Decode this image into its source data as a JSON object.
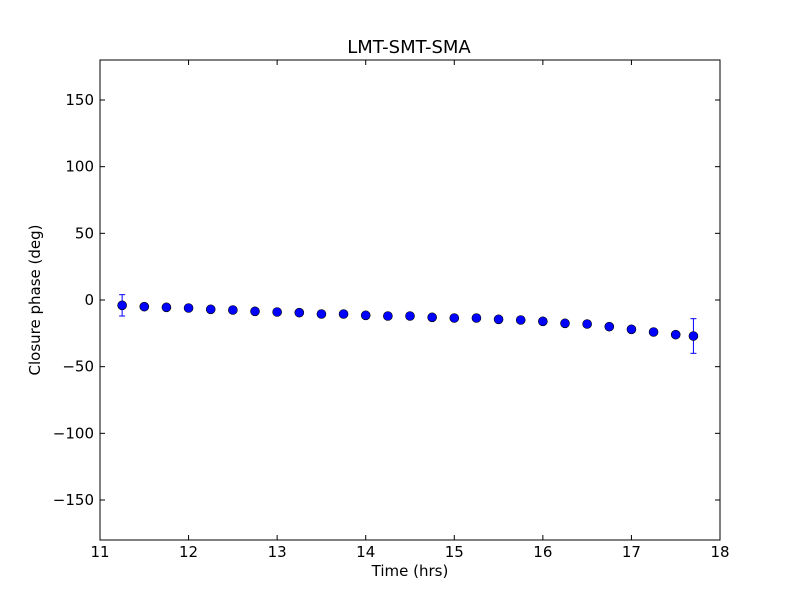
{
  "chart_data": {
    "type": "scatter",
    "title": "LMT-SMT-SMA",
    "xlabel": "Time (hrs)",
    "ylabel": "Closure phase (deg)",
    "xlim": [
      11,
      18
    ],
    "ylim": [
      -180,
      180
    ],
    "xticks": [
      11,
      12,
      13,
      14,
      15,
      16,
      17,
      18
    ],
    "yticks": [
      -150,
      -100,
      -50,
      0,
      50,
      100,
      150
    ],
    "xtick_labels": [
      "11",
      "12",
      "13",
      "14",
      "15",
      "16",
      "17",
      "18"
    ],
    "ytick_labels": [
      "−150",
      "−100",
      "−50",
      "0",
      "50",
      "100",
      "150"
    ],
    "grid": false,
    "marker_color": "#0000ff",
    "series": [
      {
        "x": [
          11.25,
          11.5,
          11.75,
          12.0,
          12.25,
          12.5,
          12.75,
          13.0,
          13.25,
          13.5,
          13.75,
          14.0,
          14.25,
          14.5,
          14.75,
          15.0,
          15.25,
          15.5,
          15.75,
          16.0,
          16.25,
          16.5,
          16.75,
          17.0,
          17.25,
          17.5,
          17.7
        ],
        "y": [
          -4,
          -5,
          -5.5,
          -6,
          -7,
          -7.5,
          -8.5,
          -9,
          -9.5,
          -10.5,
          -10.5,
          -11.5,
          -12,
          -12,
          -13,
          -13.5,
          -13.5,
          -14.5,
          -15,
          -16,
          -17.5,
          -18,
          -20,
          -22,
          -24,
          -26,
          -27
        ],
        "yerr": [
          8,
          0,
          0,
          0,
          0,
          0,
          0,
          0,
          0,
          0,
          0,
          0,
          0,
          0,
          0,
          0,
          0,
          0,
          0,
          0,
          0,
          0,
          0,
          0,
          0,
          0,
          13
        ]
      }
    ]
  }
}
